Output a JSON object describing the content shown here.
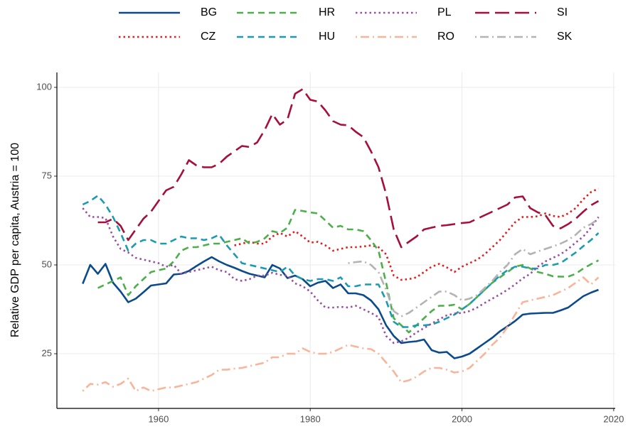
{
  "chart_data": {
    "type": "line",
    "ylabel": "Relative GDP per capita, Austria = 100",
    "x": [
      1950,
      1951,
      1952,
      1953,
      1954,
      1955,
      1956,
      1957,
      1958,
      1959,
      1960,
      1961,
      1962,
      1963,
      1964,
      1965,
      1966,
      1967,
      1968,
      1969,
      1970,
      1971,
      1972,
      1973,
      1974,
      1975,
      1976,
      1977,
      1978,
      1979,
      1980,
      1981,
      1982,
      1983,
      1984,
      1985,
      1986,
      1987,
      1988,
      1989,
      1990,
      1991,
      1992,
      1993,
      1994,
      1995,
      1996,
      1997,
      1998,
      1999,
      2000,
      2001,
      2002,
      2003,
      2004,
      2005,
      2006,
      2007,
      2008,
      2009,
      2010,
      2011,
      2012,
      2013,
      2014,
      2015,
      2016,
      2017,
      2018
    ],
    "xlim": [
      1946.6,
      2020.2
    ],
    "xticks": [
      1960,
      1980,
      2000,
      2020
    ],
    "ylim": [
      9.6,
      104.2
    ],
    "yticks": [
      25,
      50,
      75,
      100
    ],
    "grid": true,
    "legend": "top",
    "series": [
      {
        "name": "BG",
        "color": "#0b4a8b",
        "dash": "solid",
        "values": [
          44.7,
          50,
          47.5,
          50.3,
          45,
          42.5,
          39.5,
          40.5,
          42.3,
          44.2,
          44.5,
          44.8,
          47.3,
          47.5,
          48.3,
          49.7,
          51,
          52.2,
          51,
          50,
          49.2,
          48.3,
          47.5,
          47,
          46.5,
          50,
          49,
          46.3,
          47,
          46,
          44,
          45,
          45.5,
          43.5,
          44.5,
          42,
          42,
          41.5,
          40,
          37.5,
          33,
          30,
          28,
          28.3,
          28.5,
          29,
          26,
          25.3,
          25.5,
          23.7,
          24.2,
          25,
          26.5,
          28,
          29.5,
          31.3,
          32.7,
          34.2,
          36,
          36.3,
          36.4,
          36.5,
          36.5,
          37.2,
          38,
          39.6,
          41.2,
          42.2,
          43
        ]
      },
      {
        "name": "CZ",
        "color": "#e41a1c",
        "dash": "dotted",
        "values": [
          null,
          null,
          null,
          null,
          null,
          null,
          null,
          null,
          null,
          null,
          null,
          null,
          null,
          null,
          null,
          null,
          null,
          null,
          null,
          null,
          55.5,
          56,
          56.5,
          56,
          56,
          58,
          59,
          58,
          59.5,
          58,
          56.3,
          56.5,
          55.5,
          54,
          54.5,
          55,
          55,
          55.2,
          55.5,
          55,
          53,
          47,
          45.8,
          46,
          46.5,
          48,
          49.5,
          50.3,
          49.3,
          48,
          49.5,
          50.5,
          51.5,
          53,
          55,
          57,
          59.5,
          62,
          63.5,
          63.5,
          63.7,
          64.5,
          63.8,
          63.5,
          64.5,
          66,
          68.5,
          70.5,
          71.5
        ]
      },
      {
        "name": "HR",
        "color": "#4daf4a",
        "dash": "dashed",
        "values": [
          null,
          null,
          43.5,
          44.5,
          45.5,
          46.5,
          41.5,
          44,
          46,
          48,
          48.5,
          49,
          51,
          54,
          55,
          55,
          55.5,
          56,
          56,
          56.5,
          57,
          57.5,
          56,
          56.5,
          57.5,
          59.5,
          59,
          60.5,
          65.5,
          65.2,
          64.8,
          64.5,
          62.5,
          60.5,
          61,
          60,
          60,
          59.5,
          57,
          54,
          45,
          35,
          33,
          31,
          33,
          35,
          37,
          38.5,
          38.5,
          38.8,
          37.5,
          39,
          41,
          43,
          45,
          46.5,
          48,
          49.5,
          50,
          49,
          48,
          47.5,
          46.8,
          46.7,
          46.7,
          47.5,
          49,
          50.2,
          51.3
        ]
      },
      {
        "name": "HU",
        "color": "#1a9bb0",
        "dash": "dashed",
        "values": [
          67,
          68,
          69.5,
          67,
          63.5,
          59,
          54,
          56,
          57,
          57,
          56,
          56,
          57,
          58,
          57.5,
          57.5,
          57,
          57.5,
          58.5,
          55.5,
          53,
          50.5,
          50,
          49.5,
          49,
          48.5,
          48,
          49.5,
          47,
          46,
          45.5,
          46,
          46,
          45.5,
          46.5,
          44,
          44,
          44.5,
          44.5,
          44.5,
          40,
          34,
          32.5,
          32.5,
          33,
          33,
          33.2,
          34,
          35,
          36,
          37.5,
          39,
          41,
          43,
          45,
          47,
          48.5,
          49.5,
          49.5,
          49,
          49,
          50,
          50,
          50.5,
          52,
          53.5,
          55.3,
          57,
          59
        ]
      },
      {
        "name": "PL",
        "color": "#984ea3",
        "dash": "dotted",
        "values": [
          66,
          63.5,
          63.5,
          63.2,
          58,
          54.5,
          53.5,
          52,
          51.5,
          51,
          50.5,
          49.5,
          50,
          47.5,
          48,
          48.5,
          49,
          49.5,
          48.5,
          48,
          46,
          45.5,
          46,
          47,
          47,
          47.8,
          47.2,
          47,
          44.8,
          44,
          42.5,
          40,
          38,
          38,
          38.2,
          38,
          38.5,
          37.5,
          36.5,
          35.3,
          30,
          28,
          28.5,
          29.5,
          31,
          32.2,
          33.5,
          34.7,
          35.8,
          36.3,
          36.5,
          37,
          38,
          39.3,
          40.5,
          41.7,
          43,
          44.5,
          46.2,
          47.5,
          49.5,
          51,
          52,
          53,
          54.5,
          56.3,
          58,
          60.5,
          63.5
        ]
      },
      {
        "name": "RO",
        "color": "#f9b49a",
        "dash": "dotdash",
        "values": [
          14.5,
          16.5,
          16.3,
          17,
          15.7,
          16.5,
          18,
          14.5,
          15.5,
          14.5,
          15,
          15.5,
          15.5,
          16,
          16.5,
          17,
          18,
          19,
          20.5,
          20.5,
          20.8,
          21,
          21.5,
          22,
          22.5,
          24,
          24,
          25,
          25,
          26.5,
          25.5,
          25,
          25,
          25.5,
          26.5,
          27.5,
          27,
          26.5,
          26.3,
          25,
          22.5,
          20,
          17,
          17.5,
          18.5,
          20,
          21,
          21,
          20.5,
          19.7,
          20,
          21,
          23,
          25,
          27.5,
          29.5,
          32.5,
          36,
          39.5,
          40,
          40.5,
          41,
          41.5,
          42.5,
          43.5,
          45,
          46.5,
          44.5,
          46.5
        ]
      },
      {
        "name": "SI",
        "color": "#a50f3a",
        "dash": "longdash",
        "values": [
          null,
          null,
          62,
          62,
          63,
          61,
          57,
          60,
          63,
          65,
          68,
          71,
          72,
          75.5,
          79.5,
          78,
          77.5,
          77.5,
          78.5,
          80.5,
          82,
          83.5,
          83.2,
          84.5,
          88,
          92.5,
          89.5,
          91,
          98.2,
          99.5,
          96.5,
          96,
          93.5,
          90.5,
          89.5,
          89.3,
          87.5,
          86,
          82,
          77.5,
          70,
          60,
          55,
          56.5,
          58,
          60,
          60.5,
          61,
          61.2,
          61.5,
          61.8,
          62,
          63,
          64,
          65,
          66,
          67,
          69,
          69.3,
          66,
          64.8,
          64,
          61,
          60.3,
          61.5,
          63,
          65,
          66.8,
          68
        ]
      },
      {
        "name": "SK",
        "color": "#b3b3b3",
        "dash": "dotdash",
        "values": [
          null,
          null,
          null,
          null,
          null,
          null,
          null,
          null,
          null,
          null,
          null,
          null,
          null,
          null,
          null,
          null,
          null,
          null,
          null,
          null,
          null,
          null,
          null,
          null,
          null,
          null,
          null,
          null,
          null,
          null,
          null,
          null,
          null,
          null,
          null,
          50.5,
          50.8,
          51,
          50,
          48,
          43,
          37,
          35.5,
          36.5,
          38,
          39.5,
          41,
          42.5,
          42.5,
          41.5,
          40,
          40.5,
          41.5,
          43.5,
          45.5,
          48,
          50,
          53,
          54.5,
          53,
          53.8,
          54.5,
          55.2,
          56,
          57,
          58.5,
          60.5,
          61.5,
          63
        ]
      }
    ]
  }
}
